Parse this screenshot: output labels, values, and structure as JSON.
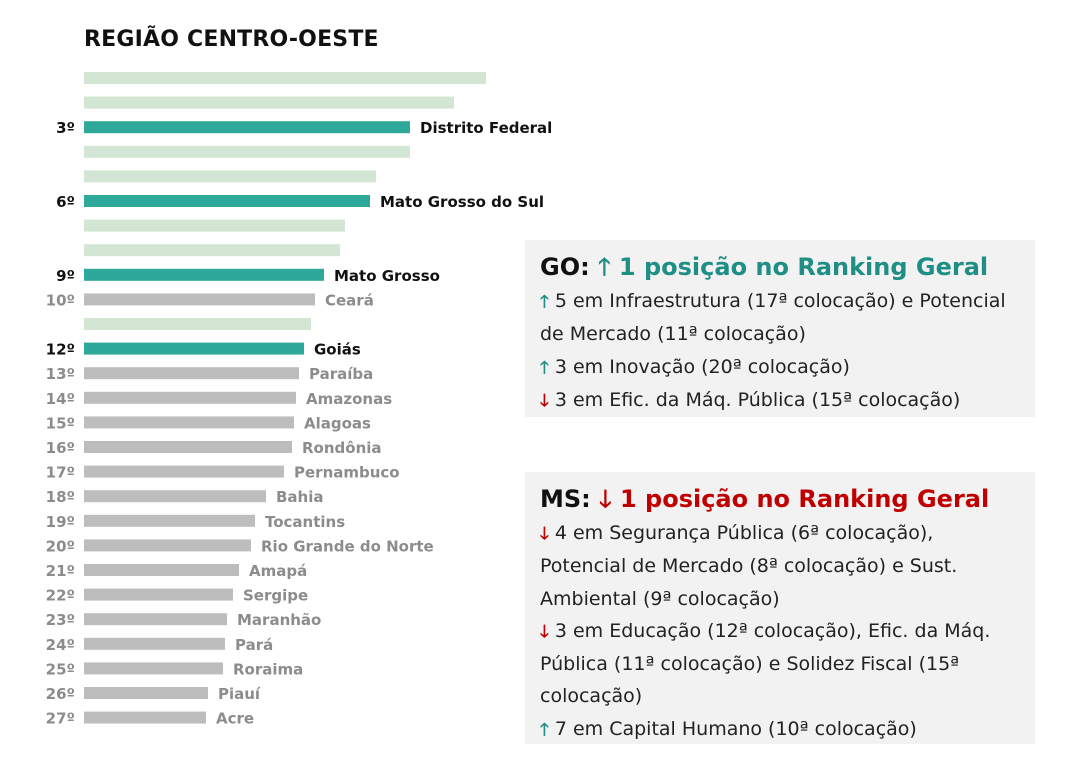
{
  "title": "REGIÃO CENTRO-OESTE",
  "colors": {
    "highlight": "#2ea899",
    "light": "#d3e5d3",
    "grey": "#bdbdbd",
    "up": "#1f8f86",
    "down": "#c00000"
  },
  "chart_data": {
    "type": "bar",
    "orientation": "horizontal",
    "title": "REGIÃO CENTRO-OESTE",
    "value_scale": "no axis printed; relative bar lengths",
    "bars": [
      {
        "rank": "",
        "label": "",
        "value": 402,
        "style": "light"
      },
      {
        "rank": "",
        "label": "",
        "value": 370,
        "style": "light"
      },
      {
        "rank": "3º",
        "label": "Distrito Federal",
        "value": 326,
        "style": "highlight"
      },
      {
        "rank": "",
        "label": "",
        "value": 326,
        "style": "light"
      },
      {
        "rank": "",
        "label": "",
        "value": 292,
        "style": "light"
      },
      {
        "rank": "6º",
        "label": "Mato Grosso do Sul",
        "value": 286,
        "style": "highlight"
      },
      {
        "rank": "",
        "label": "",
        "value": 261,
        "style": "light"
      },
      {
        "rank": "",
        "label": "",
        "value": 256,
        "style": "light"
      },
      {
        "rank": "9º",
        "label": "Mato Grosso",
        "value": 240,
        "style": "highlight"
      },
      {
        "rank": "10º",
        "label": "Ceará",
        "value": 231,
        "style": "grey"
      },
      {
        "rank": "",
        "label": "",
        "value": 227,
        "style": "light"
      },
      {
        "rank": "12º",
        "label": "Goiás",
        "value": 220,
        "style": "highlight"
      },
      {
        "rank": "13º",
        "label": "Paraíba",
        "value": 215,
        "style": "grey"
      },
      {
        "rank": "14º",
        "label": "Amazonas",
        "value": 212,
        "style": "grey"
      },
      {
        "rank": "15º",
        "label": "Alagoas",
        "value": 210,
        "style": "grey"
      },
      {
        "rank": "16º",
        "label": "Rondônia",
        "value": 208,
        "style": "grey"
      },
      {
        "rank": "17º",
        "label": "Pernambuco",
        "value": 200,
        "style": "grey"
      },
      {
        "rank": "18º",
        "label": "Bahia",
        "value": 182,
        "style": "grey"
      },
      {
        "rank": "19º",
        "label": "Tocantins",
        "value": 171,
        "style": "grey"
      },
      {
        "rank": "20º",
        "label": "Rio Grande do Norte",
        "value": 167,
        "style": "grey"
      },
      {
        "rank": "21º",
        "label": "Amapá",
        "value": 155,
        "style": "grey"
      },
      {
        "rank": "22º",
        "label": "Sergipe",
        "value": 149,
        "style": "grey"
      },
      {
        "rank": "23º",
        "label": "Maranhão",
        "value": 143,
        "style": "grey"
      },
      {
        "rank": "24º",
        "label": "Pará",
        "value": 141,
        "style": "grey"
      },
      {
        "rank": "25º",
        "label": "Roraima",
        "value": 139,
        "style": "grey"
      },
      {
        "rank": "26º",
        "label": "Piauí",
        "value": 124,
        "style": "grey"
      },
      {
        "rank": "27º",
        "label": "Acre",
        "value": 122,
        "style": "grey"
      }
    ]
  },
  "go_box": {
    "state": "GO:",
    "direction": "up",
    "arrow": "🡑",
    "headline": "1 posição no Ranking Geral",
    "lines": [
      {
        "arrow": "🡑",
        "dir": "up",
        "text": "5 em Infraestrutura (17ª colocação) e Potencial de Mercado (11ª colocação)"
      },
      {
        "arrow": "🡑",
        "dir": "up",
        "text": "3 em Inovação (20ª colocação)"
      },
      {
        "arrow": "🡓",
        "dir": "down",
        "text": "3 em Efic. da Máq. Pública (15ª colocação)"
      }
    ]
  },
  "ms_box": {
    "state": "MS:",
    "direction": "down",
    "arrow": "🡓",
    "headline": "1 posição no Ranking Geral",
    "lines": [
      {
        "arrow": "🡓",
        "dir": "down",
        "text": "4 em Segurança Pública (6ª colocação), Potencial de Mercado (8ª colocação) e Sust. Ambiental (9ª colocação)"
      },
      {
        "arrow": "🡓",
        "dir": "down",
        "text": "3 em Educação (12ª colocação), Efic. da Máq. Pública (11ª colocação) e Solidez Fiscal (15ª colocação)"
      },
      {
        "arrow": "🡑",
        "dir": "up",
        "text": "7 em Capital Humano (10ª colocação)"
      }
    ]
  }
}
